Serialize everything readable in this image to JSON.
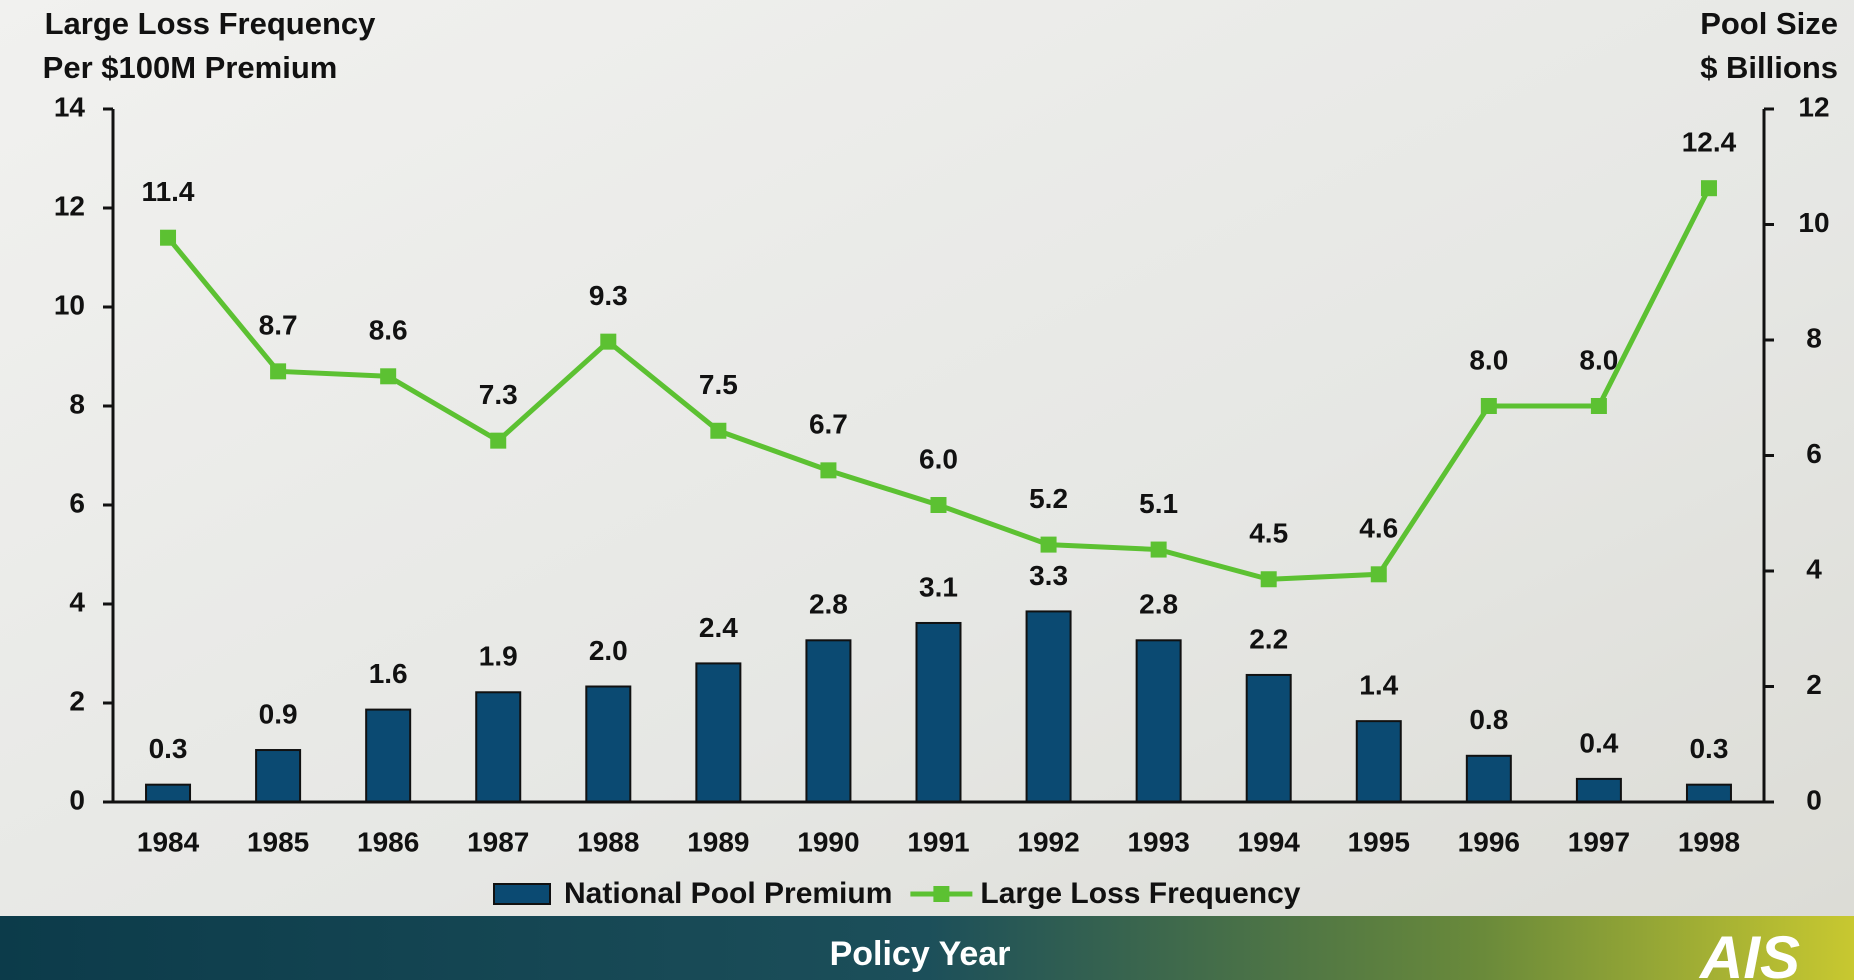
{
  "chart_data": {
    "type": "bar-line",
    "y_title": [
      "Large Loss Frequency",
      "Per $100M Premium"
    ],
    "y2_title": [
      "Pool Size",
      "$ Billions"
    ],
    "x_title": "Policy Year",
    "logo": "AIS",
    "categories": [
      "1984",
      "1985",
      "1986",
      "1987",
      "1988",
      "1989",
      "1990",
      "1991",
      "1992",
      "1993",
      "1994",
      "1995",
      "1996",
      "1997",
      "1998"
    ],
    "ylim": [
      0,
      14
    ],
    "yticks": [
      0,
      2,
      4,
      6,
      8,
      10,
      12,
      14
    ],
    "y2lim": [
      0,
      12
    ],
    "y2ticks": [
      0,
      2,
      4,
      6,
      8,
      10,
      12
    ],
    "legend": "bottom",
    "series": [
      {
        "name": "National Pool Premium",
        "type": "bar",
        "axis": "y2",
        "color": "#0b4a72",
        "values": [
          0.3,
          0.9,
          1.6,
          1.9,
          2.0,
          2.4,
          2.8,
          3.1,
          3.3,
          2.8,
          2.2,
          1.4,
          0.8,
          0.4,
          0.3
        ],
        "value_labels": [
          "0.3",
          "0.9",
          "1.6",
          "1.9",
          "2.0",
          "2.4",
          "2.8",
          "3.1",
          "3.3",
          "2.8",
          "2.2",
          "1.4",
          "0.8",
          "0.4",
          "0.3"
        ]
      },
      {
        "name": "Large Loss Frequency",
        "type": "line",
        "axis": "y",
        "color": "#5cc132",
        "values": [
          11.4,
          8.7,
          8.6,
          7.3,
          9.3,
          7.5,
          6.7,
          6.0,
          5.2,
          5.1,
          4.5,
          4.6,
          8.0,
          8.0,
          12.4
        ],
        "value_labels": [
          "11.4",
          "8.7",
          "8.6",
          "7.3",
          "9.3",
          "7.5",
          "6.7",
          "6.0",
          "5.2",
          "5.1",
          "4.5",
          "4.6",
          "8.0",
          "8.0",
          "12.4"
        ]
      }
    ]
  }
}
